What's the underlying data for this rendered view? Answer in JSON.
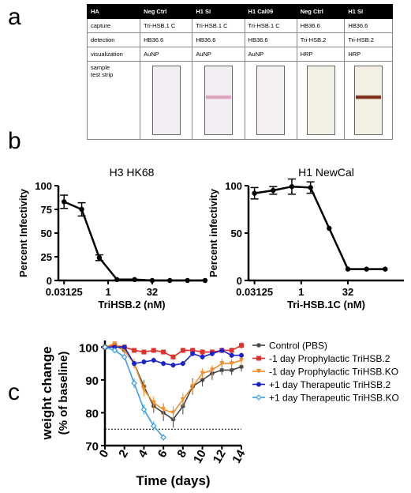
{
  "panels": {
    "a": "a",
    "b": "b",
    "c": "c"
  },
  "table": {
    "header": [
      "HA",
      "Neg Ctrl",
      "H1 SI",
      "H1 Cal09",
      "Neg Ctrl",
      "H1 SI"
    ],
    "rows": [
      {
        "label": "capture",
        "cells": [
          "Tri-HSB.1 C",
          "Tri-HSB.1 C",
          "Tri-HSB.1 C",
          "HB36.6",
          "HB36.6"
        ]
      },
      {
        "label": "detection",
        "cells": [
          "HB36.6",
          "HB36.6",
          "HB36.6",
          "Tri-HSB.2",
          "Tri-HSB.2"
        ]
      },
      {
        "label": "visualization",
        "cells": [
          "AuNP",
          "AuNP",
          "AuNP",
          "HRP",
          "HRP"
        ]
      }
    ],
    "strip_label_1": "sample",
    "strip_label_2": "test strip",
    "strips": [
      {
        "bg": "#f3eef3",
        "band": ""
      },
      {
        "bg": "#f3eef3",
        "band": "#d9a2bd"
      },
      {
        "bg": "#f4f0f4",
        "band": ""
      },
      {
        "bg": "#f3f0e6",
        "band": ""
      },
      {
        "bg": "#f3efe3",
        "band": "#7a2d14"
      }
    ]
  },
  "chart_data": [
    {
      "type": "line",
      "title": "H3 HK68",
      "xlabel": "TriHSB.2 (nM)",
      "ylabel": "Percent Infectivity",
      "x_scale": "log",
      "xticks": [
        "0.03125",
        "1",
        "32"
      ],
      "xlim": [
        0.02,
        2048
      ],
      "ylim": [
        0,
        100
      ],
      "yticks": [
        0,
        25,
        50,
        75,
        100
      ],
      "series": [
        {
          "x": [
            0.03125,
            0.125,
            0.5,
            2,
            8,
            32,
            128,
            512,
            2048
          ],
          "y": [
            83,
            75,
            24,
            1,
            1,
            0,
            0,
            0,
            0
          ],
          "err": [
            7,
            7,
            3,
            0,
            0,
            0,
            0,
            0,
            0
          ]
        }
      ]
    },
    {
      "type": "line",
      "title": "H1 NewCal",
      "xlabel": "Tri-HSB.1C (nM)",
      "ylabel": "Percent infectivity",
      "x_scale": "log",
      "xticks": [
        "0.03125",
        "1",
        "32"
      ],
      "xlim": [
        0.02,
        2048
      ],
      "ylim": [
        0,
        100
      ],
      "yticks": [
        0,
        50,
        100
      ],
      "series": [
        {
          "x": [
            0.03125,
            0.125,
            0.5,
            2,
            8,
            32,
            128,
            512
          ],
          "y": [
            92,
            95,
            99,
            98,
            55,
            12,
            12,
            12
          ],
          "err": [
            6,
            4,
            8,
            6,
            0,
            0,
            0,
            0
          ]
        }
      ]
    },
    {
      "type": "line",
      "title": "",
      "xlabel": "Time (days)",
      "ylabel_line1": "weight change",
      "ylabel_line2": "(% of baseline)",
      "xlim": [
        0,
        14
      ],
      "ylim": [
        70,
        102
      ],
      "xticks": [
        0,
        2,
        4,
        6,
        8,
        10,
        12,
        14
      ],
      "yticks": [
        70,
        80,
        90,
        100
      ],
      "reference_line": 75,
      "legend_position": "right",
      "series": [
        {
          "name": "Control (PBS)",
          "color": "#444444",
          "marker": "star",
          "x": [
            0,
            1,
            2,
            3,
            4,
            5,
            6,
            7,
            8,
            9,
            10,
            11,
            12,
            13,
            14
          ],
          "y": [
            100,
            100.5,
            99,
            95,
            88,
            82,
            80,
            78,
            82,
            88,
            90,
            92,
            93,
            93,
            94
          ],
          "err": [
            0.5,
            0.5,
            1,
            1.5,
            2,
            2,
            2.5,
            2.5,
            2.5,
            2.5,
            2,
            2,
            1.5,
            1.5,
            1.5
          ]
        },
        {
          "name": "-1 day Prophylactic TriHSB.2",
          "color": "#e0302c",
          "marker": "square",
          "x": [
            0,
            1,
            2,
            3,
            4,
            5,
            6,
            7,
            8,
            9,
            10,
            11,
            12,
            13,
            14
          ],
          "y": [
            100,
            100.5,
            100,
            99,
            98.5,
            99,
            98.5,
            97,
            99,
            99,
            98.5,
            98.5,
            99,
            99,
            100.5
          ],
          "err": [
            0.5,
            0.5,
            0.5,
            0.5,
            0.5,
            0.5,
            0.5,
            0.8,
            0.8,
            0.8,
            0.8,
            0.8,
            0.8,
            0.8,
            1
          ]
        },
        {
          "name": "-1 day Prophylactic TriHSB.KO",
          "color": "#f18e2a",
          "marker": "triangle-down",
          "x": [
            0,
            1,
            2,
            3,
            4,
            5,
            6,
            7,
            8,
            9,
            10,
            11,
            12,
            13,
            14
          ],
          "y": [
            100,
            101,
            99,
            95,
            87,
            83,
            81,
            80,
            84,
            88,
            92,
            93,
            95,
            95,
            96
          ],
          "err": [
            0.5,
            0.5,
            1,
            1.5,
            2,
            2,
            2,
            2,
            2,
            2,
            1.5,
            1.5,
            1.5,
            1.5,
            1.5
          ]
        },
        {
          "name": "+1 day Therapeutic TriHSB.2",
          "color": "#1a24c9",
          "marker": "circle",
          "x": [
            0,
            1,
            2,
            3,
            4,
            5,
            6,
            7,
            8,
            9,
            10,
            11,
            12,
            13,
            14
          ],
          "y": [
            100,
            100,
            100,
            95,
            95.5,
            96,
            95,
            94.5,
            95,
            98,
            97,
            98,
            99,
            97.5,
            97.5
          ],
          "err": [
            0.5,
            0.5,
            0.5,
            0.8,
            0.8,
            0.8,
            0.8,
            0.8,
            0.8,
            0.8,
            0.8,
            0.8,
            0.8,
            0.8,
            0.8
          ]
        },
        {
          "name": "+1 day Therapeutic TriHSB.KO",
          "color": "#3b9ee0",
          "marker": "diamond-open",
          "x": [
            0,
            1,
            2,
            3,
            4,
            5,
            6
          ],
          "y": [
            100,
            99,
            97,
            89,
            81,
            76,
            72.5
          ],
          "err": [
            0.5,
            0.5,
            1,
            1.5,
            1.5,
            1.5,
            1
          ]
        }
      ]
    }
  ]
}
